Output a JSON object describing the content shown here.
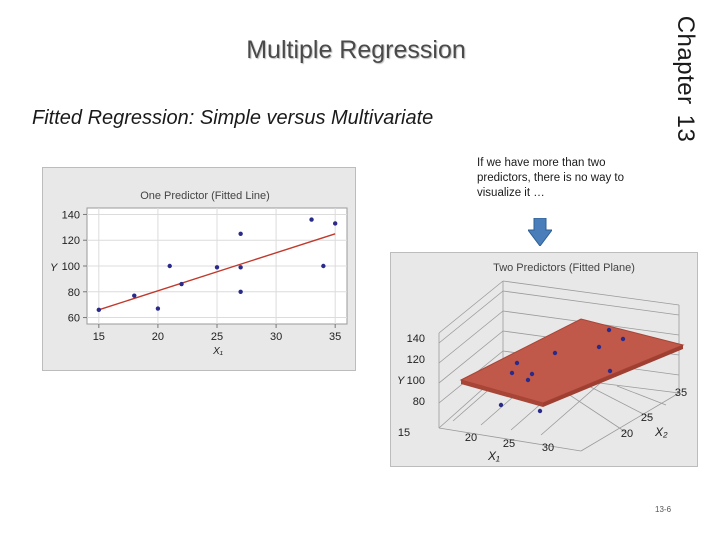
{
  "slide": {
    "title": "Multiple Regression",
    "subtitle": "Fitted Regression: Simple versus Multivariate",
    "chapter_word": "Chapter",
    "chapter_number": "13",
    "callout": "If we have more than two predictors, there is no way to visualize it …",
    "page_number": "13-6"
  },
  "colors": {
    "accent_arrow": "#4a7ebb",
    "regression_line": "#c0392b",
    "plane": "#c0594a",
    "points": "#2a2a8a"
  },
  "chart_data": [
    {
      "type": "scatter",
      "title": "One Predictor (Fitted Line)",
      "xlabel": "X₁",
      "ylabel": "Y",
      "x_ticks": [
        "15",
        "20",
        "25",
        "30",
        "35"
      ],
      "y_ticks": [
        "60",
        "80",
        "100",
        "120",
        "140"
      ],
      "xlim": [
        14,
        36
      ],
      "ylim": [
        55,
        145
      ],
      "grid": true,
      "points": [
        {
          "x": 15,
          "y": 66
        },
        {
          "x": 18,
          "y": 77
        },
        {
          "x": 20,
          "y": 67
        },
        {
          "x": 21,
          "y": 100
        },
        {
          "x": 22,
          "y": 86
        },
        {
          "x": 25,
          "y": 99
        },
        {
          "x": 27,
          "y": 125
        },
        {
          "x": 27,
          "y": 99
        },
        {
          "x": 27,
          "y": 80
        },
        {
          "x": 33,
          "y": 136
        },
        {
          "x": 34,
          "y": 100
        },
        {
          "x": 35,
          "y": 133
        }
      ],
      "fitted_line": [
        {
          "x": 15,
          "y": 66
        },
        {
          "x": 35,
          "y": 125
        }
      ]
    },
    {
      "type": "scatter",
      "title": "Two Predictors (Fitted Plane)",
      "ylabel": "Y",
      "x1label": "X₁",
      "x2label": "X₂",
      "y_ticks": [
        "80",
        "100",
        "120",
        "140"
      ],
      "x1_ticks": [
        "15",
        "20",
        "25",
        "30"
      ],
      "x2_ticks": [
        "20",
        "25",
        "35"
      ]
    }
  ]
}
